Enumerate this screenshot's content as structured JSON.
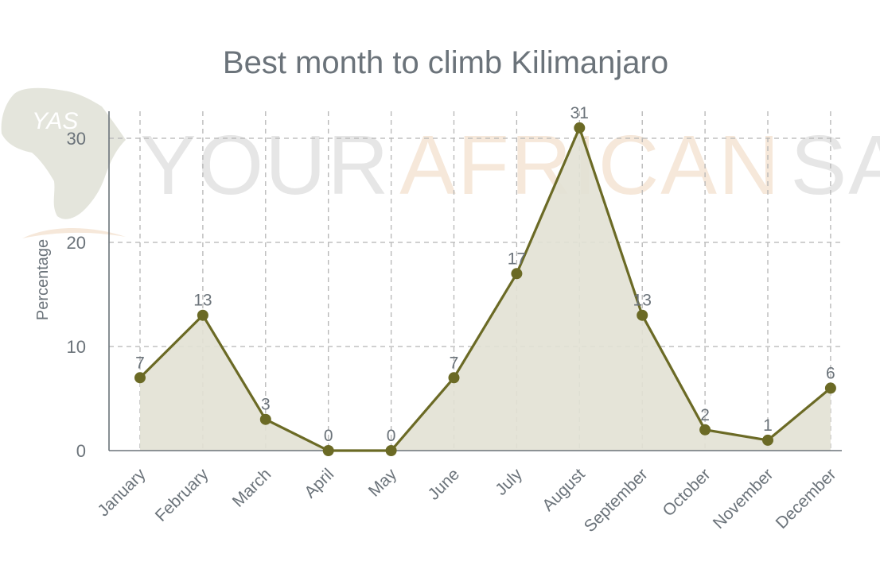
{
  "chart_data": {
    "type": "area",
    "title": "Best month to climb Kilimanjaro",
    "xlabel": "",
    "ylabel": "Percentage",
    "categories": [
      "January",
      "February",
      "March",
      "April",
      "May",
      "June",
      "July",
      "August",
      "September",
      "October",
      "November",
      "December"
    ],
    "values": [
      7,
      13,
      3,
      0,
      0,
      7,
      17,
      31,
      13,
      2,
      1,
      6
    ],
    "data_labels": [
      "7",
      "13",
      "3",
      "0",
      "0",
      "7",
      "17",
      "31",
      "13",
      "2",
      "1",
      "6"
    ],
    "ylim": [
      0,
      33
    ],
    "yticks": [
      0,
      10,
      20,
      30
    ],
    "grid": true,
    "colors": {
      "line": "#6b6a25",
      "fill": "#e2e1d4",
      "text": "#6b737a",
      "grid": "#b5b5b5"
    }
  },
  "watermark": {
    "parts": [
      "YOUR",
      "AFRICAN",
      "SAFARI"
    ],
    "logo_text": "YAS",
    "colors": [
      "#e6e6e6",
      "#f6e8da",
      "#e6e6e6"
    ],
    "map_color": "#e4e5dc"
  }
}
